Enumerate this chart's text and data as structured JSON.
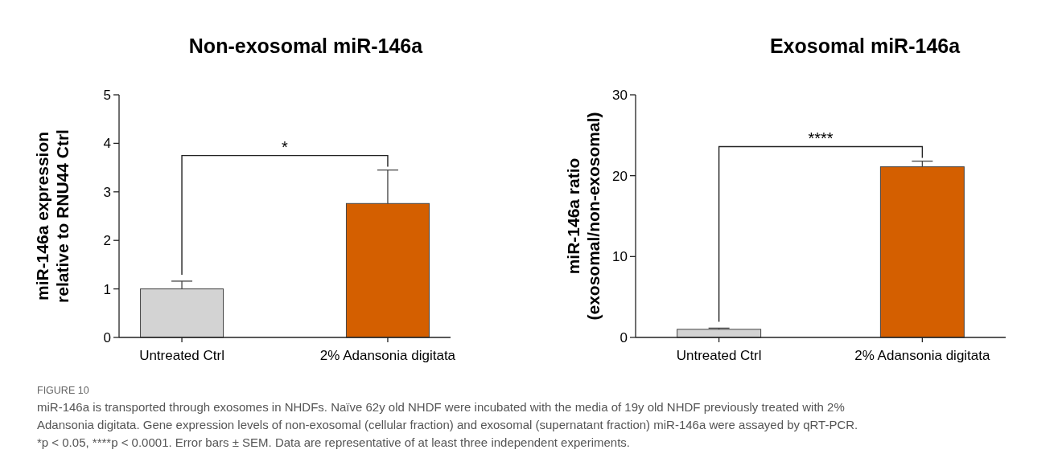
{
  "chart_data": [
    {
      "type": "bar",
      "title": "Non-exosomal miR-146a",
      "ylabel": "miR-146a expression\nrelative to RNU44 Ctrl",
      "categories": [
        "Untreated Ctrl",
        "2% Adansonia digitata"
      ],
      "values": [
        1.0,
        2.76
      ],
      "colors": [
        "#d3d3d3",
        "#d45f00"
      ],
      "errors": [
        [
          1.0,
          1.16
        ],
        [
          2.76,
          3.45
        ]
      ],
      "ylim": [
        0,
        5
      ],
      "yticks": [
        0,
        1,
        2,
        3,
        4,
        5
      ],
      "annotations": [
        "*",
        "FIGURE 10",
        "miR-146a is transported through exosomes in NHDFs. Naïve 62y old NHDF were incubated with the media of 19y old NHDF previously treated with 2% Adansonia digitata. Gene expression levels of non-exosomal (cellular fraction) and exosomal (supernatant fraction) miR-146a were assayed by qRT-PCR. *p < 0.05, ****p < 0.0001. Error bars ± SEM. Data are representative of at least three independent experiments."
      ]
    },
    {
      "type": "bar",
      "title": "Exosomal miR-146a",
      "ylabel": "miR-146a ratio\n(exosomal/non-exosomal)",
      "categories": [
        "Untreated Ctrl",
        "2% Adansonia digitata"
      ],
      "values": [
        1.0,
        21.1
      ],
      "colors": [
        "#d3d3d3",
        "#d45f00"
      ],
      "errors": [
        [
          1.0,
          1.15
        ],
        [
          21.1,
          21.8
        ]
      ],
      "ylim": [
        0,
        30
      ],
      "yticks": [
        0,
        10,
        20,
        30
      ],
      "annotations": [
        "****"
      ]
    }
  ]
}
